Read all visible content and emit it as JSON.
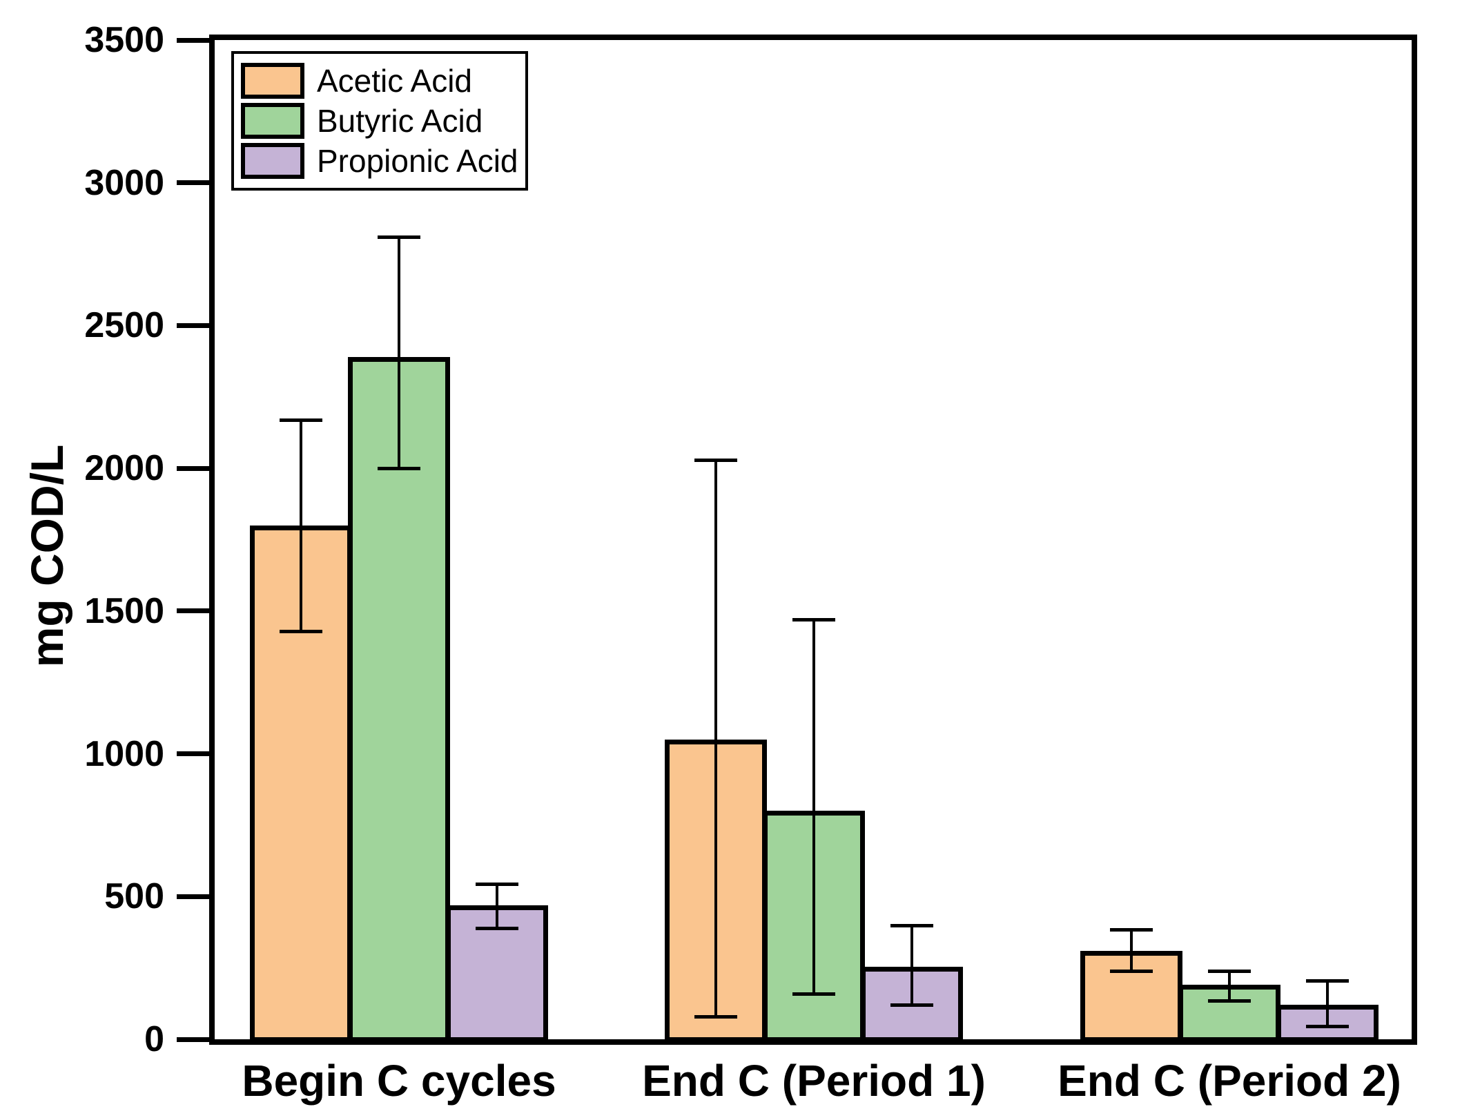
{
  "chart_data": {
    "type": "bar",
    "title": "",
    "xlabel": "",
    "ylabel": "mg COD/L",
    "ylim": [
      0,
      3500
    ],
    "yticks": [
      0,
      500,
      1000,
      1500,
      2000,
      2500,
      3000,
      3500
    ],
    "grid": false,
    "legend_position": "top-left-inside",
    "categories": [
      "Begin C cycles",
      "End C (Period 1)",
      "End C (Period 2)"
    ],
    "series": [
      {
        "name": "Acetic Acid",
        "color": "#FAC58F",
        "values": [
          1800,
          1050,
          310
        ],
        "error_high": [
          2170,
          2030,
          385
        ],
        "error_low": [
          1430,
          80,
          240
        ]
      },
      {
        "name": "Butyric Acid",
        "color": "#A0D49B",
        "values": [
          2390,
          800,
          190
        ],
        "error_high": [
          2810,
          1470,
          240
        ],
        "error_low": [
          2000,
          160,
          135
        ]
      },
      {
        "name": "Propionic Acid",
        "color": "#C5B3D6",
        "values": [
          470,
          255,
          120
        ],
        "error_high": [
          545,
          400,
          205
        ],
        "error_low": [
          390,
          120,
          45
        ]
      }
    ],
    "bar_outline_color": "#000000",
    "error_bar_color": "#000000",
    "axis_color": "#000000"
  }
}
